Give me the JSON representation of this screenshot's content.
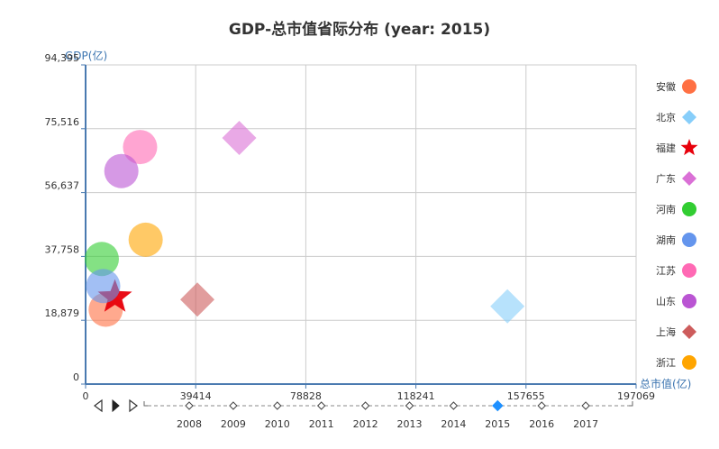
{
  "chart_data": {
    "type": "scatter",
    "title_prefix": "GDP-总市值省际分布",
    "title_year_label": "year:",
    "title": "GDP-总市值省际分布 (year: 2015)",
    "xlabel": "总市值(亿)",
    "ylabel": "GDP(亿)",
    "x_ticks": [
      "0",
      "39414",
      "78828",
      "118241",
      "157655",
      "197069"
    ],
    "y_ticks": [
      "0",
      "18,879",
      "37,758",
      "56,637",
      "75,516",
      "94,395"
    ],
    "xlim": [
      0,
      197069
    ],
    "ylim": [
      0,
      94395
    ],
    "grid": true,
    "legend_position": "right",
    "series": [
      {
        "name": "安徽",
        "color": "#ff7043",
        "symbol": "circle",
        "x": 7200,
        "y": 22000
      },
      {
        "name": "北京",
        "color": "#87cefa",
        "symbol": "diamond",
        "x": 151000,
        "y": 23000
      },
      {
        "name": "福建",
        "color": "#e8000b",
        "symbol": "star",
        "x": 10500,
        "y": 25700
      },
      {
        "name": "广东",
        "color": "#da70d6",
        "symbol": "diamond",
        "x": 55000,
        "y": 72800
      },
      {
        "name": "河南",
        "color": "#32cd32",
        "symbol": "circle",
        "x": 5800,
        "y": 37000
      },
      {
        "name": "湖南",
        "color": "#6495ed",
        "symbol": "circle",
        "x": 6300,
        "y": 29000
      },
      {
        "name": "江苏",
        "color": "#ff69b4",
        "symbol": "circle",
        "x": 19500,
        "y": 70100
      },
      {
        "name": "山东",
        "color": "#ba55d3",
        "symbol": "circle",
        "x": 12800,
        "y": 63000
      },
      {
        "name": "上海",
        "color": "#cd5c5c",
        "symbol": "diamond",
        "x": 40000,
        "y": 25000
      },
      {
        "name": "浙江",
        "color": "#ffa500",
        "symbol": "circle",
        "x": 21500,
        "y": 42700
      }
    ],
    "timeline": {
      "years": [
        "2008",
        "2009",
        "2010",
        "2011",
        "2012",
        "2013",
        "2014",
        "2015",
        "2016",
        "2017"
      ],
      "current": "2015",
      "active_color": "#1e90ff"
    }
  }
}
